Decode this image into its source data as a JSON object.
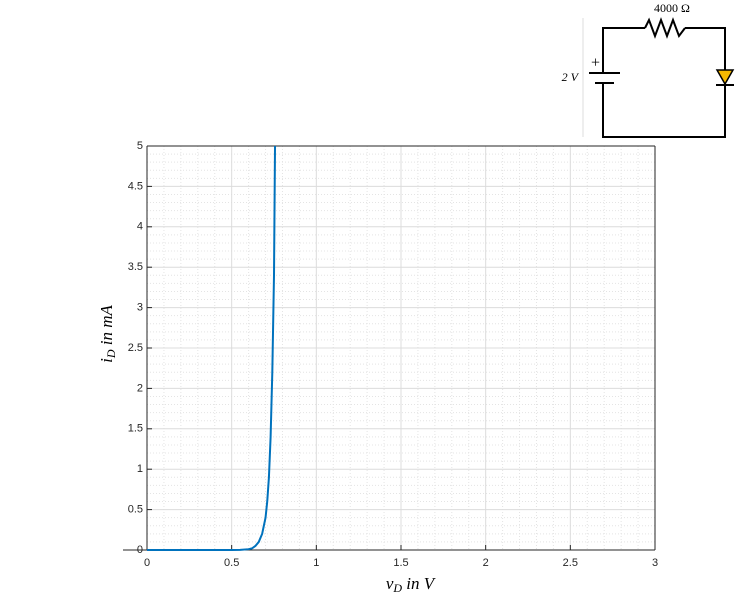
{
  "chart_data": {
    "type": "line",
    "xlabel": {
      "symbol": "v",
      "subscript": "D",
      "rest": "in V"
    },
    "ylabel": {
      "symbol": "i",
      "subscript": "D",
      "rest": "in mA"
    },
    "x": [
      0,
      0.1,
      0.2,
      0.3,
      0.4,
      0.5,
      0.55,
      0.6,
      0.62,
      0.64,
      0.66,
      0.68,
      0.7,
      0.71,
      0.72,
      0.73,
      0.74,
      0.75,
      0.756
    ],
    "series": [
      {
        "color": "#0072bd",
        "values": [
          0,
          0,
          0,
          0,
          0,
          0,
          0.002,
          0.01,
          0.02,
          0.05,
          0.1,
          0.2,
          0.4,
          0.6,
          0.9,
          1.4,
          2.2,
          3.4,
          5
        ]
      }
    ],
    "xlim": [
      0,
      3
    ],
    "xticks": [
      0,
      0.5,
      1,
      1.5,
      2,
      2.5,
      3
    ],
    "ylim": [
      0,
      5
    ],
    "yticks": [
      0,
      0.5,
      1,
      1.5,
      2,
      2.5,
      3,
      3.5,
      4,
      4.5,
      5
    ],
    "grid": true,
    "minor_grid": true
  },
  "circuit": {
    "resistor_label": "4000 Ω",
    "source_label": "2 V",
    "polarity": "+"
  }
}
